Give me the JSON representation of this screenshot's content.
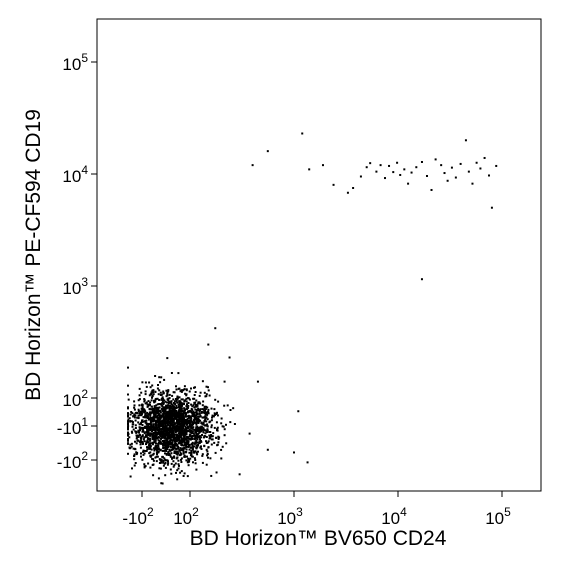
{
  "chart_data": {
    "type": "scatter",
    "title": "",
    "xlabel": "BD Horizon™ BV650 CD24",
    "ylabel": "BD Horizon™ PE-CF594 CD19",
    "x_scale": "biexponential",
    "y_scale": "biexponential",
    "x_ticks": [
      {
        "value": -100,
        "base": "-10",
        "exp": "2"
      },
      {
        "value": 100,
        "base": "10",
        "exp": "2"
      },
      {
        "value": 1000,
        "base": "10",
        "exp": "3"
      },
      {
        "value": 10000,
        "base": "10",
        "exp": "4"
      },
      {
        "value": 100000,
        "base": "10",
        "exp": "5"
      }
    ],
    "y_ticks": [
      {
        "value": -100,
        "base": "-10",
        "exp": "2"
      },
      {
        "value": -10,
        "base": "-10",
        "exp": "1"
      },
      {
        "value": 100,
        "base": "10",
        "exp": "2"
      },
      {
        "value": 1000,
        "base": "10",
        "exp": "3"
      },
      {
        "value": 10000,
        "base": "10",
        "exp": "4"
      },
      {
        "value": 100000,
        "base": "10",
        "exp": "5"
      }
    ],
    "grid": false,
    "legend": "none",
    "series": [
      {
        "marker_color": "#000000",
        "points": [
          [
            1200,
            23000
          ],
          [
            560,
            16000
          ],
          [
            400,
            12000
          ],
          [
            1400,
            11000
          ],
          [
            1900,
            12000
          ],
          [
            2400,
            8000
          ],
          [
            3300,
            6800
          ],
          [
            3700,
            7500
          ],
          [
            4400,
            9500
          ],
          [
            5000,
            11500
          ],
          [
            5400,
            12500
          ],
          [
            6200,
            10500
          ],
          [
            6800,
            12000
          ],
          [
            7500,
            9200
          ],
          [
            8200,
            11800
          ],
          [
            9000,
            10400
          ],
          [
            9800,
            12600
          ],
          [
            10500,
            9800
          ],
          [
            11500,
            11000
          ],
          [
            12500,
            8200
          ],
          [
            13500,
            10300
          ],
          [
            15000,
            11500
          ],
          [
            17000,
            12800
          ],
          [
            19000,
            9600
          ],
          [
            21000,
            7200
          ],
          [
            23000,
            13500
          ],
          [
            26000,
            12000
          ],
          [
            28000,
            10200
          ],
          [
            30000,
            8700
          ],
          [
            33000,
            11400
          ],
          [
            36000,
            9300
          ],
          [
            40000,
            12300
          ],
          [
            45000,
            20000
          ],
          [
            48000,
            10500
          ],
          [
            52000,
            8200
          ],
          [
            57000,
            12600
          ],
          [
            62000,
            11200
          ],
          [
            68000,
            13900
          ],
          [
            75000,
            9700
          ],
          [
            80000,
            5000
          ],
          [
            88000,
            11800
          ],
          [
            17000,
            1150
          ],
          [
            260,
            60
          ],
          [
            215,
            140
          ],
          [
            560,
            -50
          ],
          [
            1000,
            -60
          ],
          [
            1350,
            -120
          ],
          [
            1100,
            48
          ],
          [
            450,
            140
          ],
          [
            300,
            -300
          ],
          [
            240,
            230
          ],
          [
            180,
            -260
          ],
          [
            200,
            -90
          ],
          [
            160,
            -340
          ],
          [
            175,
            420
          ],
          [
            150,
            300
          ],
          [
            130,
            45
          ],
          [
            140,
            -20
          ]
        ]
      }
    ],
    "dense_cluster": {
      "x_center": 20,
      "y_center": -10,
      "count": 2200
    }
  }
}
